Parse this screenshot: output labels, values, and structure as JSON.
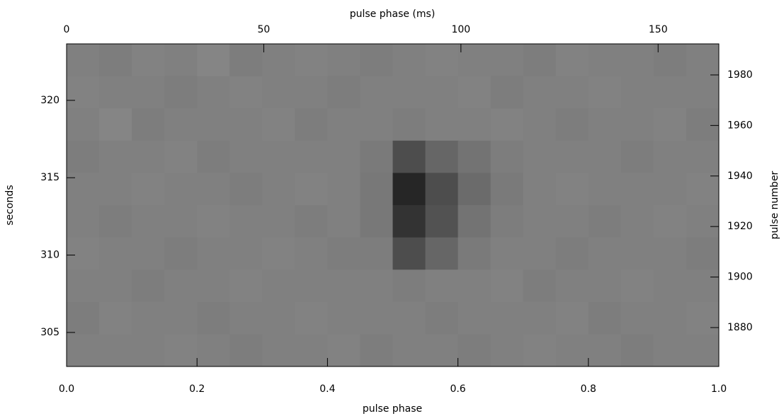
{
  "chart_data": {
    "type": "heatmap",
    "xlabel": "pulse phase",
    "x2label": "pulse phase (ms)",
    "ylabel": "seconds",
    "y2label": "pulse number",
    "xlim": [
      0,
      1
    ],
    "xticks": [
      {
        "value": 0,
        "label": "0.0"
      },
      {
        "value": 0.2,
        "label": "0.2"
      },
      {
        "value": 0.4,
        "label": "0.4"
      },
      {
        "value": 0.6,
        "label": "0.6"
      },
      {
        "value": 0.8,
        "label": "0.8"
      },
      {
        "value": 1,
        "label": "1.0"
      }
    ],
    "x2lim": [
      0,
      165.4
    ],
    "x2ticks": [
      0,
      50,
      100,
      150
    ],
    "ylim": [
      302.8,
      323.65
    ],
    "yticks": [
      305,
      310,
      315,
      320
    ],
    "y2lim": [
      1864.6,
      1992.3
    ],
    "y2ticks": [
      1880,
      1900,
      1920,
      1940,
      1960,
      1980
    ],
    "zlim": [
      0,
      1
    ],
    "colormap": "gray",
    "z": [
      [
        0.5,
        0.49,
        0.51,
        0.5,
        0.52,
        0.49,
        0.5,
        0.51,
        0.5,
        0.49,
        0.5,
        0.51,
        0.5,
        0.5,
        0.49,
        0.51,
        0.5,
        0.5,
        0.49,
        0.5
      ],
      [
        0.51,
        0.5,
        0.5,
        0.49,
        0.5,
        0.51,
        0.5,
        0.5,
        0.49,
        0.5,
        0.5,
        0.5,
        0.51,
        0.49,
        0.5,
        0.5,
        0.51,
        0.5,
        0.5,
        0.5
      ],
      [
        0.5,
        0.52,
        0.49,
        0.5,
        0.5,
        0.5,
        0.51,
        0.49,
        0.5,
        0.5,
        0.49,
        0.5,
        0.5,
        0.51,
        0.5,
        0.49,
        0.5,
        0.5,
        0.51,
        0.49
      ],
      [
        0.49,
        0.5,
        0.5,
        0.51,
        0.49,
        0.5,
        0.5,
        0.5,
        0.5,
        0.48,
        0.3,
        0.4,
        0.45,
        0.49,
        0.5,
        0.5,
        0.5,
        0.49,
        0.5,
        0.5
      ],
      [
        0.5,
        0.5,
        0.51,
        0.5,
        0.5,
        0.49,
        0.5,
        0.51,
        0.5,
        0.47,
        0.15,
        0.3,
        0.42,
        0.48,
        0.5,
        0.51,
        0.5,
        0.5,
        0.5,
        0.51
      ],
      [
        0.5,
        0.49,
        0.5,
        0.5,
        0.51,
        0.5,
        0.5,
        0.49,
        0.5,
        0.47,
        0.2,
        0.32,
        0.45,
        0.49,
        0.5,
        0.5,
        0.49,
        0.5,
        0.51,
        0.5
      ],
      [
        0.51,
        0.5,
        0.5,
        0.49,
        0.5,
        0.5,
        0.51,
        0.5,
        0.49,
        0.49,
        0.3,
        0.4,
        0.48,
        0.5,
        0.5,
        0.49,
        0.5,
        0.5,
        0.5,
        0.49
      ],
      [
        0.5,
        0.5,
        0.49,
        0.5,
        0.5,
        0.51,
        0.5,
        0.5,
        0.5,
        0.5,
        0.49,
        0.5,
        0.5,
        0.51,
        0.49,
        0.5,
        0.5,
        0.51,
        0.5,
        0.5
      ],
      [
        0.49,
        0.51,
        0.5,
        0.5,
        0.49,
        0.5,
        0.5,
        0.51,
        0.5,
        0.5,
        0.5,
        0.49,
        0.5,
        0.5,
        0.5,
        0.51,
        0.49,
        0.5,
        0.5,
        0.51
      ],
      [
        0.5,
        0.5,
        0.5,
        0.51,
        0.5,
        0.49,
        0.5,
        0.5,
        0.51,
        0.49,
        0.5,
        0.5,
        0.49,
        0.5,
        0.51,
        0.5,
        0.5,
        0.49,
        0.5,
        0.5
      ]
    ]
  }
}
